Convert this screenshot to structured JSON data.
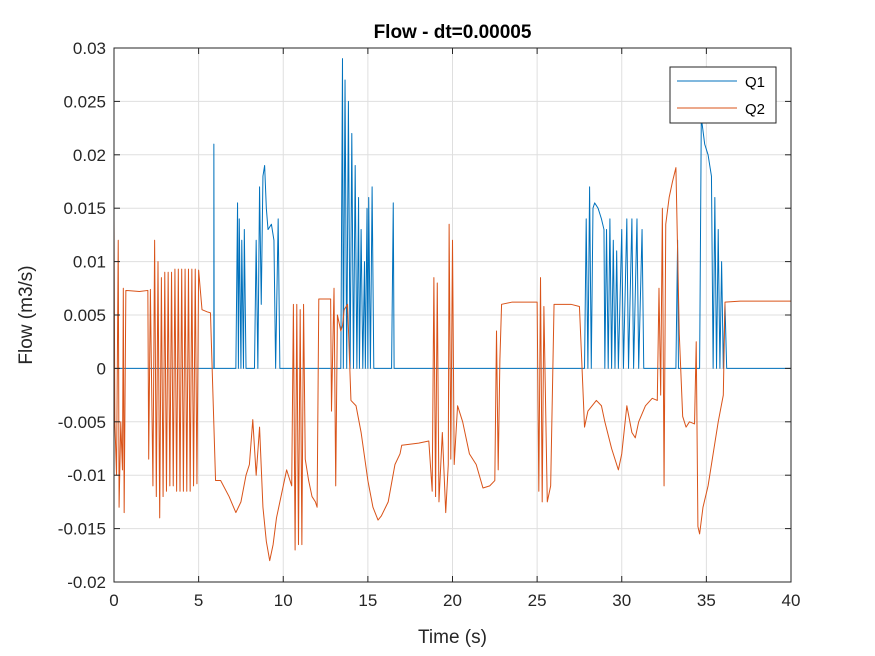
{
  "chart_data": {
    "type": "line",
    "title": "Flow - dt=0.00005",
    "xlabel": "Time (s)",
    "ylabel": "Flow (m3/s)",
    "xlim": [
      0,
      40
    ],
    "ylim": [
      -0.02,
      0.03
    ],
    "grid": true,
    "legend_position": "top-right",
    "x_ticks": [
      0,
      5,
      10,
      15,
      20,
      25,
      30,
      35,
      40
    ],
    "x_tick_labels": [
      "0",
      "5",
      "10",
      "15",
      "20",
      "25",
      "30",
      "35",
      "40"
    ],
    "y_ticks": [
      -0.02,
      -0.015,
      -0.01,
      -0.005,
      0,
      0.005,
      0.01,
      0.015,
      0.02,
      0.025,
      0.03
    ],
    "y_tick_labels": [
      "-0.02",
      "-0.015",
      "-0.01",
      "-0.005",
      "0",
      "0.005",
      "0.01",
      "0.015",
      "0.02",
      "0.025",
      "0.03"
    ],
    "series": [
      {
        "name": "Q1",
        "color": "#0072BD",
        "line_width": 1,
        "points": [
          [
            0,
            0
          ],
          [
            5.9,
            0
          ],
          [
            5.9,
            0.021
          ],
          [
            5.92,
            0
          ],
          [
            7.2,
            0
          ],
          [
            7.3,
            0.0155
          ],
          [
            7.35,
            0
          ],
          [
            7.4,
            0.014
          ],
          [
            7.5,
            0
          ],
          [
            7.55,
            0.012
          ],
          [
            7.65,
            0
          ],
          [
            7.7,
            0.013
          ],
          [
            7.8,
            0
          ],
          [
            8.3,
            0
          ],
          [
            8.4,
            0.012
          ],
          [
            8.5,
            0
          ],
          [
            8.6,
            0.017
          ],
          [
            8.7,
            0.006
          ],
          [
            8.8,
            0.018
          ],
          [
            8.9,
            0.019
          ],
          [
            9.0,
            0.015
          ],
          [
            9.1,
            0.013
          ],
          [
            9.3,
            0.0135
          ],
          [
            9.45,
            0.012
          ],
          [
            9.55,
            0
          ],
          [
            9.7,
            0.014
          ],
          [
            9.8,
            0
          ],
          [
            13.4,
            0
          ],
          [
            13.5,
            0.029
          ],
          [
            13.55,
            0
          ],
          [
            13.65,
            0.027
          ],
          [
            13.75,
            0
          ],
          [
            13.85,
            0.025
          ],
          [
            13.95,
            0
          ],
          [
            14.05,
            0.022
          ],
          [
            14.15,
            0
          ],
          [
            14.25,
            0.019
          ],
          [
            14.35,
            0
          ],
          [
            14.45,
            0.016
          ],
          [
            14.5,
            0
          ],
          [
            14.6,
            0.013
          ],
          [
            14.7,
            0
          ],
          [
            14.8,
            0.01
          ],
          [
            14.85,
            0
          ],
          [
            14.95,
            0.015
          ],
          [
            15.0,
            0
          ],
          [
            15.05,
            0.016
          ],
          [
            15.15,
            0
          ],
          [
            15.25,
            0.017
          ],
          [
            15.35,
            0
          ],
          [
            15.45,
            0
          ],
          [
            16.4,
            0
          ],
          [
            16.5,
            0.0155
          ],
          [
            16.55,
            0
          ],
          [
            16.6,
            0
          ],
          [
            27.8,
            0
          ],
          [
            27.9,
            0.014
          ],
          [
            28.0,
            0
          ],
          [
            28.1,
            0.017
          ],
          [
            28.2,
            0
          ],
          [
            28.3,
            0.015
          ],
          [
            28.4,
            0.0155
          ],
          [
            28.6,
            0.015
          ],
          [
            28.8,
            0.014
          ],
          [
            28.95,
            0.013
          ],
          [
            29.0,
            0
          ],
          [
            29.1,
            0.013
          ],
          [
            29.2,
            0
          ],
          [
            29.3,
            0.014
          ],
          [
            29.4,
            0
          ],
          [
            29.5,
            0.012
          ],
          [
            29.6,
            0
          ],
          [
            29.7,
            0.011
          ],
          [
            29.8,
            0
          ],
          [
            30.0,
            0.013
          ],
          [
            30.1,
            0
          ],
          [
            30.3,
            0.014
          ],
          [
            30.4,
            0
          ],
          [
            30.6,
            0.014
          ],
          [
            30.7,
            0
          ],
          [
            30.9,
            0.014
          ],
          [
            31.0,
            0
          ],
          [
            31.2,
            0.013
          ],
          [
            31.3,
            0
          ],
          [
            31.5,
            0
          ],
          [
            33.2,
            0
          ],
          [
            33.3,
            0.012
          ],
          [
            33.35,
            0
          ],
          [
            34.6,
            0
          ],
          [
            34.7,
            0.0235
          ],
          [
            34.9,
            0.021
          ],
          [
            35.1,
            0.02
          ],
          [
            35.3,
            0.018
          ],
          [
            35.4,
            0
          ],
          [
            35.5,
            0.016
          ],
          [
            35.6,
            0
          ],
          [
            35.7,
            0.013
          ],
          [
            35.8,
            0
          ],
          [
            35.9,
            0.01
          ],
          [
            36.0,
            0
          ],
          [
            36.1,
            0.006
          ],
          [
            36.2,
            0
          ],
          [
            40,
            0
          ]
        ]
      },
      {
        "name": "Q2",
        "color": "#D95319",
        "line_width": 1,
        "points": [
          [
            0,
            0.014
          ],
          [
            0.05,
            -0.005
          ],
          [
            0.15,
            -0.01
          ],
          [
            0.25,
            0.012
          ],
          [
            0.3,
            -0.013
          ],
          [
            0.4,
            -0.005
          ],
          [
            0.5,
            -0.0095
          ],
          [
            0.55,
            0.0075
          ],
          [
            0.6,
            -0.0135
          ],
          [
            0.7,
            0.0073
          ],
          [
            1.5,
            0.0072
          ],
          [
            2.0,
            0.0073
          ],
          [
            2.05,
            -0.0085
          ],
          [
            2.15,
            0.0074
          ],
          [
            2.3,
            -0.011
          ],
          [
            2.4,
            0.012
          ],
          [
            2.5,
            -0.012
          ],
          [
            2.6,
            0.01
          ],
          [
            2.7,
            -0.014
          ],
          [
            2.8,
            0.0085
          ],
          [
            2.9,
            -0.012
          ],
          [
            3.0,
            0.009
          ],
          [
            3.1,
            -0.0115
          ],
          [
            3.2,
            0.009
          ],
          [
            3.3,
            -0.011
          ],
          [
            3.4,
            0.009
          ],
          [
            3.5,
            -0.011
          ],
          [
            3.6,
            0.0093
          ],
          [
            3.7,
            -0.0115
          ],
          [
            3.8,
            0.0093
          ],
          [
            3.9,
            -0.0115
          ],
          [
            4.0,
            0.0093
          ],
          [
            4.1,
            -0.0115
          ],
          [
            4.2,
            0.0093
          ],
          [
            4.3,
            -0.0115
          ],
          [
            4.4,
            0.0093
          ],
          [
            4.5,
            -0.0115
          ],
          [
            4.6,
            0.0093
          ],
          [
            4.7,
            -0.011
          ],
          [
            4.8,
            0.0093
          ],
          [
            4.9,
            -0.0108
          ],
          [
            5.0,
            0.0092
          ],
          [
            5.2,
            0.0055
          ],
          [
            5.5,
            0.0053
          ],
          [
            5.7,
            0.0052
          ],
          [
            6.0,
            -0.0105
          ],
          [
            6.3,
            -0.0105
          ],
          [
            6.8,
            -0.012
          ],
          [
            7.2,
            -0.0135
          ],
          [
            7.5,
            -0.0125
          ],
          [
            7.8,
            -0.01
          ],
          [
            8.0,
            -0.009
          ],
          [
            8.2,
            -0.0048
          ],
          [
            8.4,
            -0.01
          ],
          [
            8.6,
            -0.0055
          ],
          [
            8.8,
            -0.013
          ],
          [
            9.0,
            -0.0162
          ],
          [
            9.2,
            -0.018
          ],
          [
            9.4,
            -0.0165
          ],
          [
            9.6,
            -0.014
          ],
          [
            9.8,
            -0.0125
          ],
          [
            10.0,
            -0.011
          ],
          [
            10.2,
            -0.0095
          ],
          [
            10.5,
            -0.011
          ],
          [
            10.6,
            0.006
          ],
          [
            10.7,
            -0.017
          ],
          [
            10.8,
            0.006
          ],
          [
            10.9,
            -0.0165
          ],
          [
            11.0,
            0.0055
          ],
          [
            11.1,
            -0.0165
          ],
          [
            11.2,
            0.006
          ],
          [
            11.3,
            -0.0085
          ],
          [
            11.5,
            -0.0105
          ],
          [
            11.7,
            -0.012
          ],
          [
            11.9,
            -0.0125
          ],
          [
            12.0,
            -0.013
          ],
          [
            12.1,
            0.0065
          ],
          [
            12.4,
            0.0065
          ],
          [
            12.8,
            0.0065
          ],
          [
            12.85,
            -0.004
          ],
          [
            13.0,
            0.0075
          ],
          [
            13.1,
            -0.011
          ],
          [
            13.2,
            0.005
          ],
          [
            13.4,
            0.0035
          ],
          [
            13.5,
            0.004
          ],
          [
            13.6,
            0.0055
          ],
          [
            13.8,
            0.006
          ],
          [
            14.0,
            -0.003
          ],
          [
            14.3,
            -0.0035
          ],
          [
            14.6,
            -0.006
          ],
          [
            15.0,
            -0.0105
          ],
          [
            15.3,
            -0.013
          ],
          [
            15.6,
            -0.0142
          ],
          [
            15.8,
            -0.0138
          ],
          [
            16.2,
            -0.0125
          ],
          [
            16.6,
            -0.009
          ],
          [
            16.9,
            -0.008
          ],
          [
            17.0,
            -0.0072
          ],
          [
            18.0,
            -0.007
          ],
          [
            18.6,
            -0.0068
          ],
          [
            18.8,
            -0.0115
          ],
          [
            18.9,
            0.0085
          ],
          [
            19.0,
            -0.012
          ],
          [
            19.1,
            0.008
          ],
          [
            19.2,
            -0.0125
          ],
          [
            19.4,
            -0.006
          ],
          [
            19.6,
            -0.0135
          ],
          [
            19.75,
            -0.009
          ],
          [
            19.8,
            0.0135
          ],
          [
            19.9,
            -0.0085
          ],
          [
            20.0,
            0.012
          ],
          [
            20.1,
            -0.009
          ],
          [
            20.3,
            -0.0035
          ],
          [
            20.6,
            -0.005
          ],
          [
            21.0,
            -0.008
          ],
          [
            21.4,
            -0.009
          ],
          [
            21.8,
            -0.0112
          ],
          [
            22.2,
            -0.011
          ],
          [
            22.5,
            -0.0105
          ],
          [
            22.6,
            0.0035
          ],
          [
            22.7,
            -0.0095
          ],
          [
            22.8,
            0.0008
          ],
          [
            22.9,
            0.006
          ],
          [
            23.5,
            0.0062
          ],
          [
            24.0,
            0.0062
          ],
          [
            24.5,
            0.0062
          ],
          [
            25.0,
            0.0062
          ],
          [
            25.1,
            -0.0115
          ],
          [
            25.2,
            0.0085
          ],
          [
            25.3,
            -0.0125
          ],
          [
            25.4,
            0.0058
          ],
          [
            25.6,
            -0.0125
          ],
          [
            25.8,
            -0.011
          ],
          [
            26.0,
            0.006
          ],
          [
            26.5,
            0.006
          ],
          [
            27.0,
            0.006
          ],
          [
            27.5,
            0.0058
          ],
          [
            27.8,
            -0.0055
          ],
          [
            28.0,
            -0.004
          ],
          [
            28.5,
            -0.003
          ],
          [
            28.8,
            -0.0035
          ],
          [
            29.0,
            -0.005
          ],
          [
            29.4,
            -0.0075
          ],
          [
            29.8,
            -0.0095
          ],
          [
            30.0,
            -0.008
          ],
          [
            30.3,
            -0.0035
          ],
          [
            30.6,
            -0.006
          ],
          [
            30.8,
            -0.0065
          ],
          [
            31.0,
            -0.005
          ],
          [
            31.4,
            -0.0035
          ],
          [
            31.8,
            -0.0028
          ],
          [
            32.1,
            -0.003
          ],
          [
            32.2,
            0.0075
          ],
          [
            32.3,
            -0.0025
          ],
          [
            32.4,
            0.015
          ],
          [
            32.5,
            -0.011
          ],
          [
            32.6,
            0.0135
          ],
          [
            32.8,
            0.016
          ],
          [
            33.0,
            0.0175
          ],
          [
            33.2,
            0.0188
          ],
          [
            33.4,
            0.0032
          ],
          [
            33.6,
            -0.0045
          ],
          [
            33.8,
            -0.0055
          ],
          [
            34.0,
            -0.005
          ],
          [
            34.3,
            -0.0052
          ],
          [
            34.4,
            0.0025
          ],
          [
            34.5,
            -0.0148
          ],
          [
            34.6,
            -0.0155
          ],
          [
            34.8,
            -0.013
          ],
          [
            35.1,
            -0.011
          ],
          [
            35.4,
            -0.008
          ],
          [
            35.7,
            -0.005
          ],
          [
            36.0,
            -0.0025
          ],
          [
            36.1,
            0.0062
          ],
          [
            37.0,
            0.0063
          ],
          [
            38.0,
            0.0063
          ],
          [
            39.0,
            0.0063
          ],
          [
            40.0,
            0.0063
          ]
        ]
      }
    ]
  }
}
